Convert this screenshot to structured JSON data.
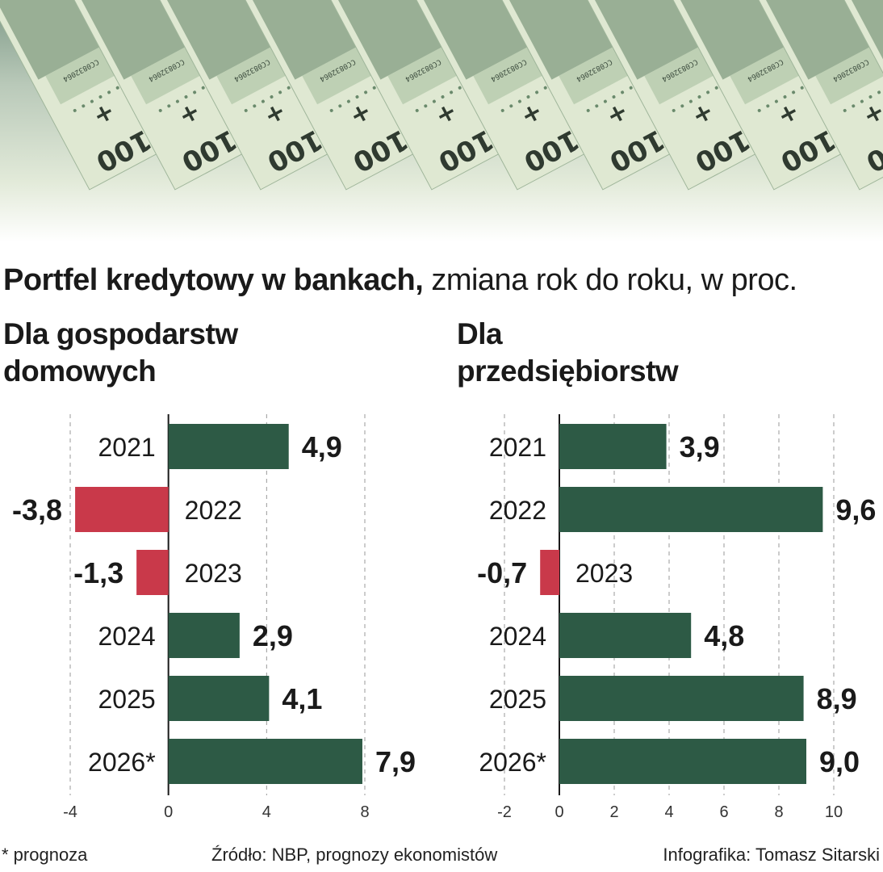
{
  "colors": {
    "positive": "#2d5a45",
    "negative": "#c9394a",
    "grid": "#999999",
    "text": "#1a1a1a"
  },
  "banner": {
    "note_denomination": "100",
    "note_serial": "CC0832064"
  },
  "header": {
    "title_bold": "Portfel kredytowy w bankach,",
    "title_rest": " zmiana rok do roku, w proc."
  },
  "panels": {
    "left": {
      "title_line1": "Dla gospodarstw",
      "title_line2": "domowych"
    },
    "right": {
      "title_line1": "Dla",
      "title_line2": "przedsiębiorstw"
    }
  },
  "chart_data": [
    {
      "type": "bar",
      "orientation": "horizontal",
      "title": "Dla gospodarstw domowych",
      "categories": [
        "2021",
        "2022",
        "2023",
        "2024",
        "2025",
        "2026*"
      ],
      "values": [
        4.9,
        -3.8,
        -1.3,
        2.9,
        4.1,
        7.9
      ],
      "labels": [
        "4,9",
        "-3,8",
        "-1,3",
        "2,9",
        "4,1",
        "7,9"
      ],
      "xlim": [
        -4,
        8
      ],
      "xticks": [
        -4,
        0,
        4,
        8
      ],
      "grid": true
    },
    {
      "type": "bar",
      "orientation": "horizontal",
      "title": "Dla przedsiębiorstw",
      "categories": [
        "2021",
        "2022",
        "2023",
        "2024",
        "2025",
        "2026*"
      ],
      "values": [
        3.9,
        9.6,
        -0.7,
        4.8,
        8.9,
        9.0
      ],
      "labels": [
        "3,9",
        "9,6",
        "-0,7",
        "4,8",
        "8,9",
        "9,0"
      ],
      "xlim": [
        -2,
        10
      ],
      "xticks": [
        -2,
        0,
        2,
        4,
        6,
        8,
        10
      ],
      "grid": true
    }
  ],
  "footer": {
    "note": "* prognoza",
    "source": "Źródło: NBP, prognozy ekonomistów",
    "credit": "Infografika: Tomasz Sitarski"
  }
}
